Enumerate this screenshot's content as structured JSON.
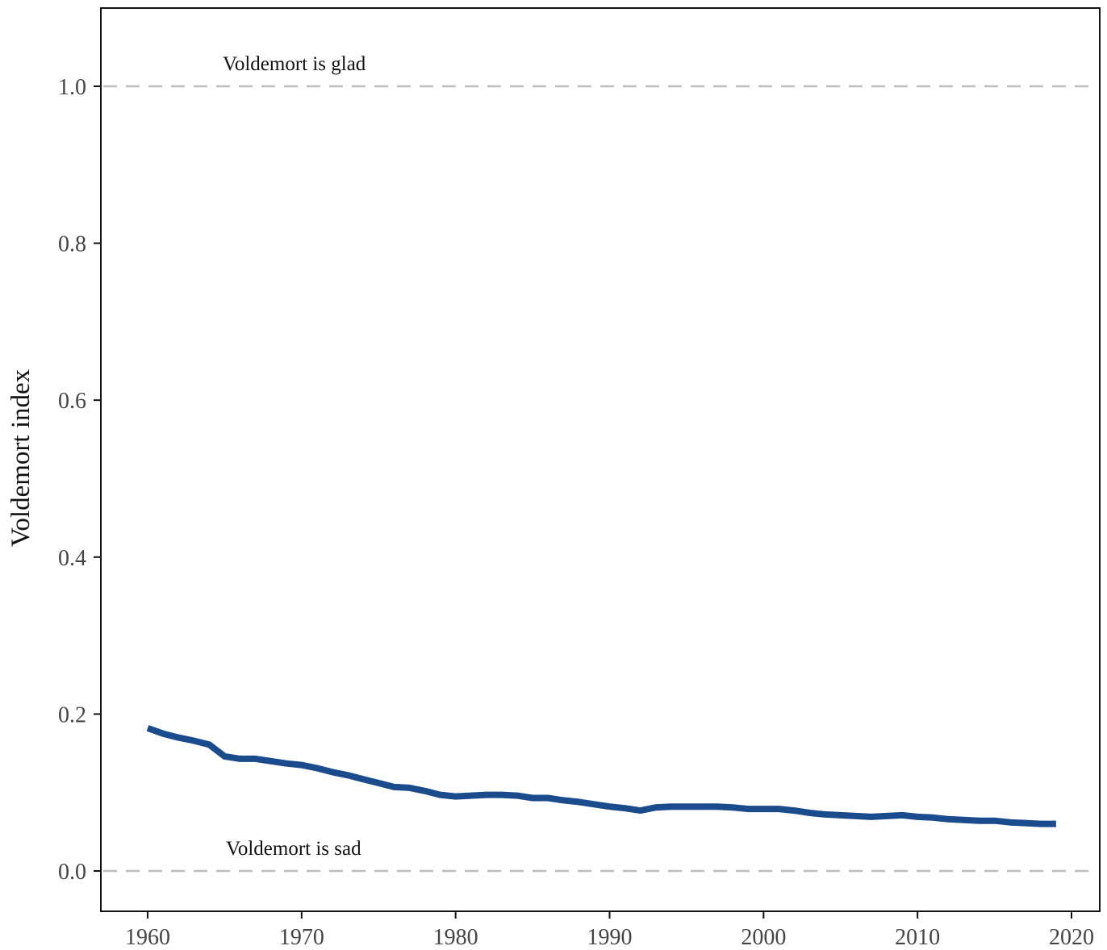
{
  "chart_data": {
    "type": "line",
    "title": "",
    "xlabel": "",
    "ylabel": "Voldemort index",
    "xlim": [
      1957,
      2021.5
    ],
    "ylim": [
      -0.05,
      1.1
    ],
    "x_ticks": [
      1960,
      1970,
      1980,
      1990,
      2000,
      2010,
      2020
    ],
    "x_tick_labels": [
      "1960",
      "1970",
      "1980",
      "1990",
      "2000",
      "2010",
      "2020"
    ],
    "y_ticks": [
      0.0,
      0.2,
      0.4,
      0.6,
      0.8,
      1.0
    ],
    "y_tick_labels": [
      "0.0",
      "0.2",
      "0.4",
      "0.6",
      "0.8",
      "1.0"
    ],
    "grid": false,
    "reference_lines": [
      {
        "y": 1.0,
        "label": "Voldemort is glad",
        "color": "#bdbdbd",
        "style": "dashed"
      },
      {
        "y": 0.0,
        "label": "Voldemort is sad",
        "color": "#bdbdbd",
        "style": "dashed"
      }
    ],
    "series": [
      {
        "color": "#1a4b8c",
        "x": [
          1960,
          1961,
          1962,
          1963,
          1964,
          1965,
          1966,
          1967,
          1968,
          1969,
          1970,
          1971,
          1972,
          1973,
          1974,
          1975,
          1976,
          1977,
          1978,
          1979,
          1980,
          1981,
          1982,
          1983,
          1984,
          1985,
          1986,
          1987,
          1988,
          1989,
          1990,
          1991,
          1992,
          1993,
          1994,
          1995,
          1996,
          1997,
          1998,
          1999,
          2000,
          2001,
          2002,
          2003,
          2004,
          2005,
          2006,
          2007,
          2008,
          2009,
          2010,
          2011,
          2012,
          2013,
          2014,
          2015,
          2016,
          2017,
          2018,
          2019
        ],
        "values": [
          0.182,
          0.175,
          0.17,
          0.166,
          0.161,
          0.146,
          0.143,
          0.143,
          0.14,
          0.137,
          0.135,
          0.131,
          0.126,
          0.122,
          0.117,
          0.112,
          0.107,
          0.106,
          0.102,
          0.097,
          0.095,
          0.096,
          0.097,
          0.097,
          0.096,
          0.093,
          0.093,
          0.09,
          0.088,
          0.085,
          0.082,
          0.08,
          0.077,
          0.081,
          0.082,
          0.082,
          0.082,
          0.082,
          0.081,
          0.079,
          0.079,
          0.079,
          0.077,
          0.074,
          0.072,
          0.071,
          0.07,
          0.069,
          0.07,
          0.071,
          0.069,
          0.068,
          0.066,
          0.065,
          0.064,
          0.064,
          0.062,
          0.061,
          0.06,
          0.06
        ]
      }
    ]
  }
}
